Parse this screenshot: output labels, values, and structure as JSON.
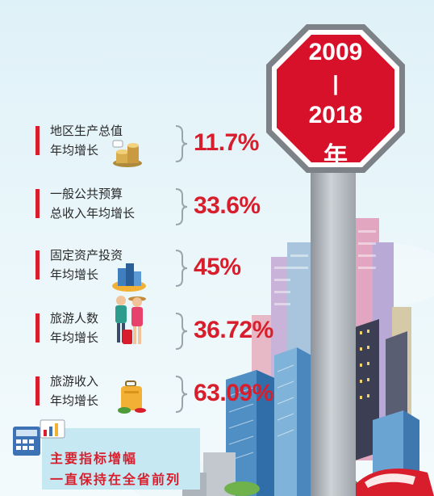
{
  "period": {
    "start": "2009",
    "separator": "|",
    "end": "2018",
    "unit": "年"
  },
  "indicators": [
    {
      "label": "地区生产总值\n年均增长",
      "value": "11.7%",
      "icon": "coins-icon"
    },
    {
      "label": "一般公共预算\n总收入年均增长",
      "value": "33.6%",
      "icon": ""
    },
    {
      "label": "固定资产投资\n年均增长",
      "value": "45%",
      "icon": "buildings-icon"
    },
    {
      "label": "旅游人数\n年均增长",
      "value": "36.72%",
      "icon": "tourists-icon"
    },
    {
      "label": "旅游收入\n年均增长",
      "value": "63.09%",
      "icon": "luggage-icon"
    }
  ],
  "footer": {
    "line1": "主要指标增幅",
    "line2": "一直保持在全省前列"
  },
  "colors": {
    "accent": "#d81e2c",
    "sky": "#dff1f8",
    "footer_bg": "#c6e8f2"
  }
}
